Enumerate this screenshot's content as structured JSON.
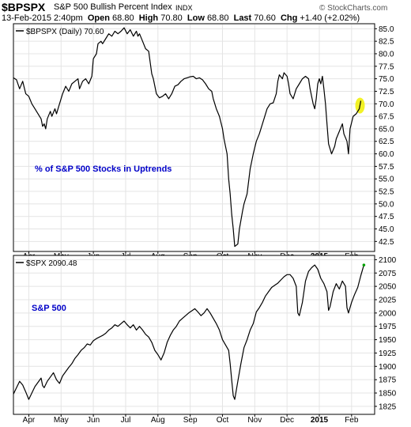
{
  "header": {
    "symbol": "$BPSPX",
    "name": "S&P 500 Bullish Percent Index",
    "exchange": "INDX",
    "brand": "© StockCharts.com",
    "date": "13-Feb-2015 2:40pm",
    "open_label": "Open",
    "open": "68.80",
    "high_label": "High",
    "high": "70.80",
    "low_label": "Low",
    "low": "68.80",
    "last_label": "Last",
    "last": "70.60",
    "chg_label": "Chg",
    "chg": "+1.40 (+2.02%)"
  },
  "colors": {
    "line": "#000000",
    "annotation": "#0000c8",
    "highlight": "#f0f000",
    "last_marker": "#00a000",
    "grid": "#e4e4e4"
  },
  "chart_data": [
    {
      "type": "line",
      "legend": "$BPSPX (Daily) 70.60",
      "annotation": "% of S&P 500 Stocks in Uptrends",
      "y_ticks": [
        "85.0",
        "82.5",
        "80.0",
        "77.5",
        "75.0",
        "72.5",
        "70.0",
        "67.5",
        "65.0",
        "62.5",
        "60.0",
        "57.5",
        "55.0",
        "52.5",
        "50.0",
        "47.5",
        "45.0",
        "42.5"
      ],
      "ylim": [
        40.5,
        86.0
      ],
      "xlim": [
        0,
        235
      ],
      "x_ticks": [
        {
          "label": "Apr",
          "x": 10
        },
        {
          "label": "May",
          "x": 31
        },
        {
          "label": "Jun",
          "x": 52
        },
        {
          "label": "Jul",
          "x": 73
        },
        {
          "label": "Aug",
          "x": 94
        },
        {
          "label": "Sep",
          "x": 115
        },
        {
          "label": "Oct",
          "x": 136
        },
        {
          "label": "Nov",
          "x": 157
        },
        {
          "label": "Dec",
          "x": 178
        },
        {
          "label": "2015",
          "x": 199
        },
        {
          "label": "Feb",
          "x": 220
        }
      ],
      "points": [
        [
          0,
          75.2
        ],
        [
          2,
          74.8
        ],
        [
          4,
          73.0
        ],
        [
          6,
          74.5
        ],
        [
          8,
          72.0
        ],
        [
          10,
          71.5
        ],
        [
          12,
          70.0
        ],
        [
          14,
          69.0
        ],
        [
          16,
          68.0
        ],
        [
          18,
          67.0
        ],
        [
          19,
          65.5
        ],
        [
          20,
          66.0
        ],
        [
          21,
          65.0
        ],
        [
          22,
          67.0
        ],
        [
          24,
          68.5
        ],
        [
          25,
          67.5
        ],
        [
          27,
          69.0
        ],
        [
          28,
          68.0
        ],
        [
          30,
          70.0
        ],
        [
          32,
          72.0
        ],
        [
          34,
          73.5
        ],
        [
          36,
          72.5
        ],
        [
          38,
          74.0
        ],
        [
          40,
          74.5
        ],
        [
          42,
          75.0
        ],
        [
          43,
          73.0
        ],
        [
          45,
          74.5
        ],
        [
          47,
          75.0
        ],
        [
          49,
          74.0
        ],
        [
          51,
          75.5
        ],
        [
          52,
          79.0
        ],
        [
          54,
          80.0
        ],
        [
          55,
          82.0
        ],
        [
          57,
          82.5
        ],
        [
          58,
          82.0
        ],
        [
          60,
          83.0
        ],
        [
          62,
          84.0
        ],
        [
          64,
          83.5
        ],
        [
          66,
          84.5
        ],
        [
          68,
          84.0
        ],
        [
          70,
          84.5
        ],
        [
          72,
          85.2
        ],
        [
          74,
          84.0
        ],
        [
          76,
          84.8
        ],
        [
          78,
          83.5
        ],
        [
          80,
          84.5
        ],
        [
          81,
          83.5
        ],
        [
          82,
          84.0
        ],
        [
          84,
          82.5
        ],
        [
          86,
          81.0
        ],
        [
          88,
          80.5
        ],
        [
          90,
          76.0
        ],
        [
          91,
          75.0
        ],
        [
          93,
          72.0
        ],
        [
          95,
          71.2
        ],
        [
          97,
          71.5
        ],
        [
          99,
          72.0
        ],
        [
          101,
          71.0
        ],
        [
          103,
          72.0
        ],
        [
          105,
          73.5
        ],
        [
          107,
          73.8
        ],
        [
          109,
          74.5
        ],
        [
          111,
          75.0
        ],
        [
          113,
          75.2
        ],
        [
          115,
          75.4
        ],
        [
          117,
          75.5
        ],
        [
          119,
          75.0
        ],
        [
          121,
          75.2
        ],
        [
          123,
          74.8
        ],
        [
          125,
          74.0
        ],
        [
          127,
          73.0
        ],
        [
          129,
          72.5
        ],
        [
          130,
          71.0
        ],
        [
          132,
          69.0
        ],
        [
          134,
          67.5
        ],
        [
          136,
          65.0
        ],
        [
          137,
          63.0
        ],
        [
          139,
          60.0
        ],
        [
          140,
          55.0
        ],
        [
          141,
          52.0
        ],
        [
          142,
          48.0
        ],
        [
          143,
          45.0
        ],
        [
          144,
          41.5
        ],
        [
          146,
          42.0
        ],
        [
          147,
          45.0
        ],
        [
          149,
          48.5
        ],
        [
          150,
          50.0
        ],
        [
          152,
          52.0
        ],
        [
          154,
          57.0
        ],
        [
          156,
          60.0
        ],
        [
          158,
          62.5
        ],
        [
          160,
          64.0
        ],
        [
          161,
          65.0
        ],
        [
          163,
          67.0
        ],
        [
          165,
          69.0
        ],
        [
          167,
          70.0
        ],
        [
          169,
          70.2
        ],
        [
          171,
          72.0
        ],
        [
          172,
          74.5
        ],
        [
          173,
          75.8
        ],
        [
          175,
          75.0
        ],
        [
          176,
          76.2
        ],
        [
          178,
          75.5
        ],
        [
          179,
          74.0
        ],
        [
          180,
          72.0
        ],
        [
          182,
          71.0
        ],
        [
          184,
          73.0
        ],
        [
          186,
          74.0
        ],
        [
          188,
          75.0
        ],
        [
          190,
          75.5
        ],
        [
          192,
          75.0
        ],
        [
          193,
          73.0
        ],
        [
          195,
          70.0
        ],
        [
          196,
          69.0
        ],
        [
          197,
          71.0
        ],
        [
          198,
          74.0
        ],
        [
          199,
          75.0
        ],
        [
          200,
          74.0
        ],
        [
          201,
          75.5
        ],
        [
          202,
          73.0
        ],
        [
          203,
          70.0
        ],
        [
          204,
          66.0
        ],
        [
          205,
          62.0
        ],
        [
          207,
          60.0
        ],
        [
          209,
          61.5
        ],
        [
          210,
          63.0
        ],
        [
          212,
          64.5
        ],
        [
          214,
          66.0
        ],
        [
          215,
          64.0
        ],
        [
          217,
          62.5
        ],
        [
          218,
          60.0
        ],
        [
          219,
          65.0
        ],
        [
          221,
          67.5
        ],
        [
          223,
          68.0
        ],
        [
          225,
          69.0
        ],
        [
          226,
          70.6
        ]
      ]
    },
    {
      "type": "line",
      "legend": "$SPX 2090.48",
      "annotation": "S&P 500",
      "y_ticks": [
        "2100",
        "2075",
        "2050",
        "2025",
        "2000",
        "1975",
        "1950",
        "1925",
        "1900",
        "1875",
        "1850",
        "1825"
      ],
      "ylim": [
        1810,
        2108
      ],
      "xlim": [
        0,
        235
      ],
      "x_ticks": [
        {
          "label": "Apr",
          "x": 10
        },
        {
          "label": "May",
          "x": 31
        },
        {
          "label": "Jun",
          "x": 52
        },
        {
          "label": "Jul",
          "x": 73
        },
        {
          "label": "Aug",
          "x": 94
        },
        {
          "label": "Sep",
          "x": 115
        },
        {
          "label": "Oct",
          "x": 136
        },
        {
          "label": "Nov",
          "x": 157
        },
        {
          "label": "Dec",
          "x": 178
        },
        {
          "label": "2015",
          "x": 199
        },
        {
          "label": "Feb",
          "x": 220
        }
      ],
      "points": [
        [
          0,
          1848
        ],
        [
          2,
          1860
        ],
        [
          4,
          1872
        ],
        [
          6,
          1865
        ],
        [
          8,
          1852
        ],
        [
          10,
          1838
        ],
        [
          12,
          1850
        ],
        [
          14,
          1862
        ],
        [
          16,
          1870
        ],
        [
          18,
          1878
        ],
        [
          19,
          1864
        ],
        [
          20,
          1860
        ],
        [
          22,
          1872
        ],
        [
          24,
          1880
        ],
        [
          26,
          1888
        ],
        [
          28,
          1875
        ],
        [
          30,
          1868
        ],
        [
          32,
          1882
        ],
        [
          34,
          1890
        ],
        [
          36,
          1898
        ],
        [
          38,
          1905
        ],
        [
          40,
          1915
        ],
        [
          42,
          1922
        ],
        [
          44,
          1930
        ],
        [
          46,
          1935
        ],
        [
          48,
          1942
        ],
        [
          50,
          1940
        ],
        [
          52,
          1948
        ],
        [
          54,
          1952
        ],
        [
          56,
          1955
        ],
        [
          58,
          1958
        ],
        [
          60,
          1962
        ],
        [
          62,
          1968
        ],
        [
          64,
          1972
        ],
        [
          66,
          1978
        ],
        [
          68,
          1975
        ],
        [
          70,
          1980
        ],
        [
          72,
          1985
        ],
        [
          74,
          1978
        ],
        [
          76,
          1972
        ],
        [
          78,
          1978
        ],
        [
          80,
          1968
        ],
        [
          82,
          1975
        ],
        [
          84,
          1968
        ],
        [
          86,
          1960
        ],
        [
          88,
          1955
        ],
        [
          90,
          1945
        ],
        [
          92,
          1930
        ],
        [
          94,
          1922
        ],
        [
          96,
          1912
        ],
        [
          98,
          1925
        ],
        [
          100,
          1945
        ],
        [
          102,
          1958
        ],
        [
          104,
          1968
        ],
        [
          106,
          1975
        ],
        [
          108,
          1985
        ],
        [
          110,
          1990
        ],
        [
          112,
          1995
        ],
        [
          114,
          2000
        ],
        [
          116,
          2004
        ],
        [
          118,
          2008
        ],
        [
          120,
          2002
        ],
        [
          122,
          1995
        ],
        [
          124,
          2000
        ],
        [
          126,
          2008
        ],
        [
          128,
          2000
        ],
        [
          130,
          1990
        ],
        [
          132,
          1980
        ],
        [
          134,
          1968
        ],
        [
          136,
          1950
        ],
        [
          138,
          1940
        ],
        [
          140,
          1930
        ],
        [
          141,
          1905
        ],
        [
          142,
          1875
        ],
        [
          143,
          1845
        ],
        [
          144,
          1838
        ],
        [
          146,
          1872
        ],
        [
          148,
          1905
        ],
        [
          150,
          1935
        ],
        [
          152,
          1950
        ],
        [
          154,
          1968
        ],
        [
          156,
          1980
        ],
        [
          158,
          2002
        ],
        [
          160,
          2010
        ],
        [
          162,
          2020
        ],
        [
          164,
          2032
        ],
        [
          166,
          2040
        ],
        [
          168,
          2048
        ],
        [
          170,
          2052
        ],
        [
          172,
          2056
        ],
        [
          174,
          2062
        ],
        [
          176,
          2068
        ],
        [
          178,
          2072
        ],
        [
          180,
          2072
        ],
        [
          182,
          2065
        ],
        [
          184,
          2050
        ],
        [
          185,
          2000
        ],
        [
          186,
          1995
        ],
        [
          188,
          2020
        ],
        [
          190,
          2060
        ],
        [
          192,
          2078
        ],
        [
          194,
          2085
        ],
        [
          196,
          2090
        ],
        [
          198,
          2082
        ],
        [
          200,
          2065
        ],
        [
          202,
          2055
        ],
        [
          204,
          2040
        ],
        [
          205,
          2005
        ],
        [
          206,
          2012
        ],
        [
          208,
          2040
        ],
        [
          210,
          2055
        ],
        [
          212,
          2045
        ],
        [
          214,
          2060
        ],
        [
          216,
          2050
        ],
        [
          217,
          2010
        ],
        [
          218,
          2000
        ],
        [
          220,
          2020
        ],
        [
          222,
          2035
        ],
        [
          224,
          2048
        ],
        [
          226,
          2070
        ],
        [
          228,
          2090
        ]
      ]
    }
  ]
}
